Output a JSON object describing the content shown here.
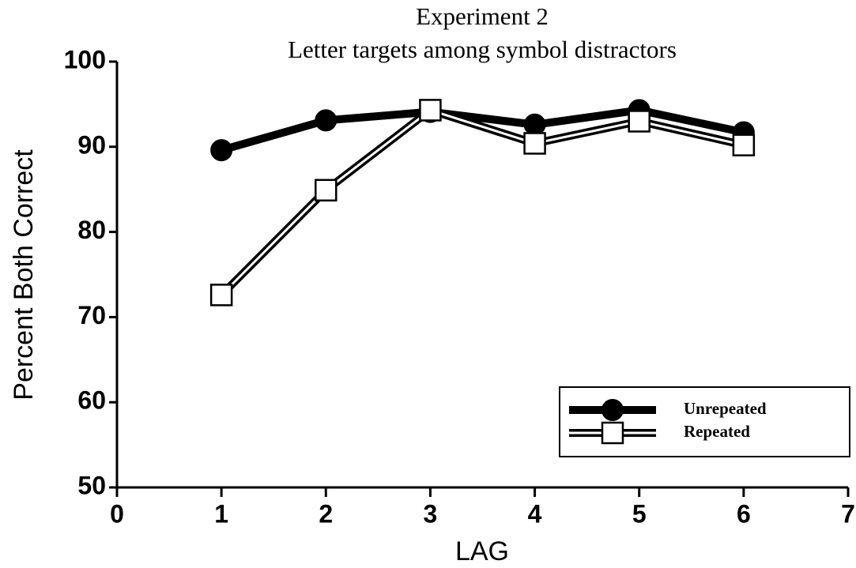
{
  "chart_data": {
    "type": "line",
    "title": "Experiment 2",
    "subtitle": "Letter targets among symbol distractors",
    "x_label": "LAG",
    "y_label": "Percent Both Correct",
    "x": [
      1,
      2,
      3,
      4,
      5,
      6
    ],
    "series": [
      {
        "name": "Unrepeated",
        "color": "#000000",
        "marker": "circle",
        "values": [
          89.6,
          93.1,
          94.1,
          92.6,
          94.3,
          91.7
        ]
      },
      {
        "name": "Repeated",
        "color": "#000000",
        "marker": "square",
        "values": [
          72.6,
          84.9,
          94.3,
          90.4,
          93.0,
          90.2
        ]
      }
    ],
    "xlim": [
      0,
      7
    ],
    "xticks": [
      0,
      1,
      2,
      3,
      4,
      5,
      6,
      7
    ],
    "ylim": [
      50,
      100
    ],
    "yticks": [
      50,
      60,
      70,
      80,
      90,
      100
    ],
    "grid": false,
    "legend": "lower right"
  }
}
